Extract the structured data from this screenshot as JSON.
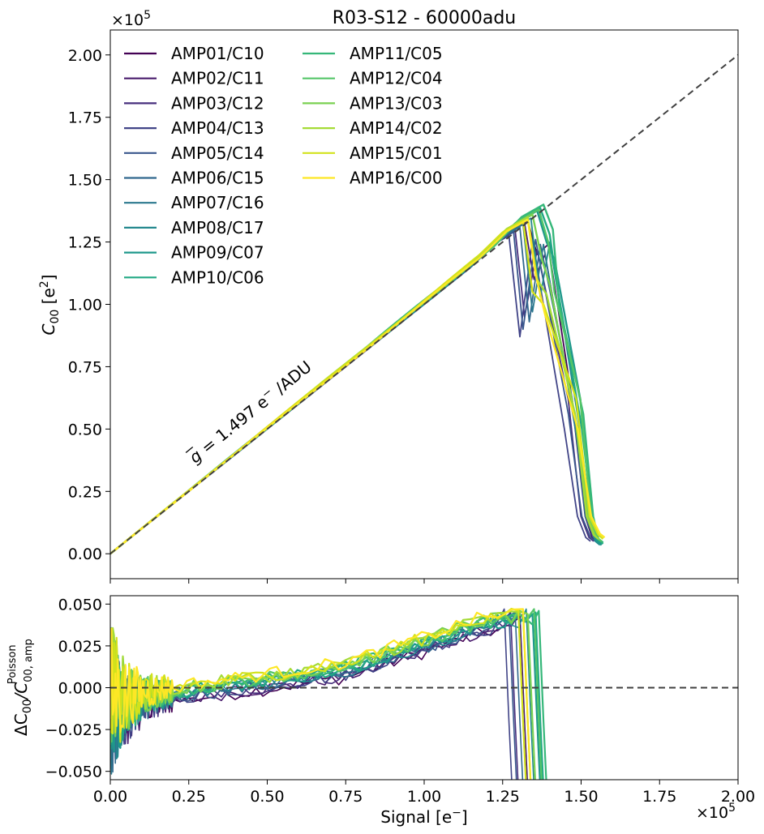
{
  "chart_data": [
    {
      "type": "line",
      "title": "R03-S12 - 60000adu",
      "xlabel": "",
      "ylabel_main": "C",
      "ylabel_sub": "00",
      "ylabel_unit": " [e",
      "ylabel_unit_sup": "2",
      "ylabel_end": "]",
      "y_multiplier": "×10",
      "y_multiplier_exp": "5",
      "xlim": [
        0,
        200000
      ],
      "ylim": [
        -10000,
        210000
      ],
      "yticks": [
        0,
        25000,
        50000,
        75000,
        100000,
        125000,
        150000,
        175000,
        200000
      ],
      "ytick_labels": [
        "0.00",
        "0.25",
        "0.50",
        "0.75",
        "1.00",
        "1.25",
        "1.50",
        "1.75",
        "2.00"
      ],
      "xticks": [
        0,
        25000,
        50000,
        75000,
        100000,
        125000,
        150000,
        175000,
        200000
      ],
      "reference_line": {
        "style": "dashed",
        "color": "#404040",
        "x": [
          0,
          200000
        ],
        "y": [
          0,
          200000
        ]
      },
      "annotation": {
        "g": "g",
        "text": " = 1.497 e",
        "sup": "−",
        "tail": " /ADU",
        "x": 27000,
        "y": 36000,
        "rotation_deg": -39
      },
      "legend": {
        "location": "upper-left",
        "columns": 2
      },
      "series": [
        {
          "name": "AMP01/C10",
          "color": "#440154",
          "peak_x": 133000,
          "peak_y": 133500,
          "dip_x": 136000,
          "dip_y": 120000,
          "bump_x": 139500,
          "bump_y": 124000,
          "end_x": 156000,
          "end_y": 5000
        },
        {
          "name": "AMP02/C11",
          "color": "#481a6c",
          "peak_x": 132000,
          "peak_y": 132500,
          "dip_x": 135000,
          "dip_y": 110000,
          "bump_x": 138500,
          "bump_y": 120000,
          "end_x": 155000,
          "end_y": 5000
        },
        {
          "name": "AMP03/C12",
          "color": "#472f7d",
          "peak_x": 129000,
          "peak_y": 129500,
          "dip_x": 132000,
          "dip_y": 95000,
          "bump_x": 136000,
          "bump_y": 122000,
          "end_x": 154000,
          "end_y": 5000
        },
        {
          "name": "AMP04/C13",
          "color": "#414487",
          "peak_x": 127000,
          "peak_y": 127500,
          "dip_x": 130500,
          "dip_y": 87000,
          "bump_x": 134500,
          "bump_y": 126000,
          "end_x": 153000,
          "end_y": 5000
        },
        {
          "name": "AMP05/C14",
          "color": "#39568c",
          "peak_x": 128500,
          "peak_y": 129000,
          "dip_x": 131500,
          "dip_y": 90000,
          "bump_x": 135500,
          "bump_y": 126000,
          "end_x": 154500,
          "end_y": 5000
        },
        {
          "name": "AMP06/C15",
          "color": "#31688e",
          "peak_x": 130500,
          "peak_y": 131000,
          "dip_x": 133500,
          "dip_y": 93000,
          "bump_x": 137000,
          "bump_y": 124000,
          "end_x": 155500,
          "end_y": 5000
        },
        {
          "name": "AMP07/C16",
          "color": "#2a788e",
          "peak_x": 131500,
          "peak_y": 132000,
          "dip_x": 134500,
          "dip_y": 97000,
          "bump_x": 138000,
          "bump_y": 124000,
          "end_x": 156500,
          "end_y": 4000
        },
        {
          "name": "AMP08/C17",
          "color": "#23888e",
          "peak_x": 134000,
          "peak_y": 134500,
          "dip_x": 137000,
          "dip_y": 103000,
          "bump_x": 140000,
          "bump_y": 125000,
          "end_x": 156000,
          "end_y": 3500
        },
        {
          "name": "AMP09/C07",
          "color": "#1f988b",
          "peak_x": 136000,
          "peak_y": 137500,
          "dip_x": 139000,
          "dip_y": 125000,
          "bump_x": 141500,
          "bump_y": 118000,
          "end_x": 156500,
          "end_y": 3500
        },
        {
          "name": "AMP10/C06",
          "color": "#22a884",
          "peak_x": 137000,
          "peak_y": 138500,
          "dip_x": 140000,
          "dip_y": 128000,
          "bump_x": 142000,
          "bump_y": 110000,
          "end_x": 157000,
          "end_y": 4000
        },
        {
          "name": "AMP11/C05",
          "color": "#35b779",
          "peak_x": 138000,
          "peak_y": 140000,
          "dip_x": 141000,
          "dip_y": 130000,
          "bump_x": 143000,
          "bump_y": 100000,
          "end_x": 157000,
          "end_y": 4500
        },
        {
          "name": "AMP12/C04",
          "color": "#54c568",
          "peak_x": 136500,
          "peak_y": 138000,
          "dip_x": 139500,
          "dip_y": 125000,
          "bump_x": 141500,
          "bump_y": 105000,
          "end_x": 156500,
          "end_y": 5000
        },
        {
          "name": "AMP13/C03",
          "color": "#7ad151",
          "peak_x": 134500,
          "peak_y": 136000,
          "dip_x": 137500,
          "dip_y": 118000,
          "bump_x": 140000,
          "bump_y": 108000,
          "end_x": 156000,
          "end_y": 5500
        },
        {
          "name": "AMP14/C02",
          "color": "#a5db36",
          "peak_x": 133000,
          "peak_y": 135000,
          "dip_x": 136000,
          "dip_y": 110000,
          "bump_x": 139000,
          "bump_y": 104000,
          "end_x": 155500,
          "end_y": 6000
        },
        {
          "name": "AMP15/C01",
          "color": "#d2e21b",
          "peak_x": 131500,
          "peak_y": 133500,
          "dip_x": 134500,
          "dip_y": 105000,
          "bump_x": 138000,
          "bump_y": 100000,
          "end_x": 157000,
          "end_y": 6000
        },
        {
          "name": "AMP16/C00",
          "color": "#fde725",
          "peak_x": 133000,
          "peak_y": 134000,
          "dip_x": 135500,
          "dip_y": 112000,
          "bump_x": 138500,
          "bump_y": 96000,
          "end_x": 157500,
          "end_y": 6500
        }
      ]
    },
    {
      "type": "line",
      "title": "",
      "xlabel": "Signal [e",
      "xlabel_sup": "−",
      "xlabel_end": "]",
      "ylabel": "ΔC",
      "ylabel_sub": "00",
      "ylabel_mid": "/C",
      "ylabel_sub2": "00, amp",
      "ylabel_sup2": "Poisson",
      "x_multiplier": "×10",
      "x_multiplier_exp": "5",
      "xlim": [
        0,
        200000
      ],
      "ylim": [
        -0.055,
        0.055
      ],
      "xticks": [
        0,
        25000,
        50000,
        75000,
        100000,
        125000,
        150000,
        175000,
        200000
      ],
      "xtick_labels": [
        "0.00",
        "0.25",
        "0.50",
        "0.75",
        "1.00",
        "1.25",
        "1.50",
        "1.75",
        "2.00"
      ],
      "yticks": [
        -0.05,
        -0.025,
        0,
        0.025,
        0.05
      ],
      "ytick_labels": [
        "−0.050",
        "−0.025",
        "0.000",
        "0.025",
        "0.050"
      ],
      "reference_line": {
        "style": "dashed",
        "color": "#404040",
        "y": 0
      },
      "series_profile": {
        "x": [
          5000,
          25000,
          50000,
          75000,
          100000,
          115000,
          125000
        ],
        "y": [
          -0.008,
          -0.002,
          0.004,
          0.011,
          0.026,
          0.036,
          0.04
        ]
      },
      "series_drop_x": [
        133000,
        132000,
        129000,
        127000,
        128500,
        130500,
        131500,
        134000,
        136000,
        137000,
        138000,
        136500,
        134500,
        133000,
        131500,
        133000
      ]
    }
  ]
}
